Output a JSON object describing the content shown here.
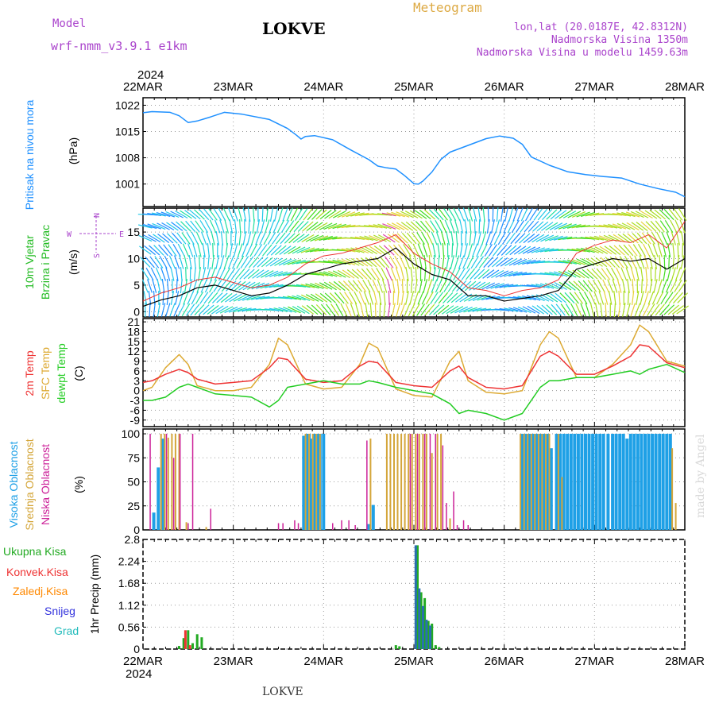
{
  "header": {
    "model_label": "Model",
    "model_name": "wrf-nmm_v3.9.1 e1km",
    "location": "LOKVE",
    "product": "Meteogram",
    "coords": "lon,lat (20.0187E, 42.8312N)",
    "elevation": "Nadmorska Visina 1350m",
    "model_elevation": "Nadmorska Visina u modelu 1459.63m",
    "year": "2024",
    "footer_location": "LOKVE",
    "watermark": "made by Angel"
  },
  "colors": {
    "pressure": "#1e90ff",
    "wind_label": "#22bb22",
    "temp_2m": "#ee3333",
    "temp_sfc": "#ddaa33",
    "dewpoint": "#22cc22",
    "cloud_high": "#1ea0e6",
    "cloud_mid": "#d4a63a",
    "cloud_low": "#cc2299",
    "precip_total": "#22aa22",
    "precip_conv": "#ee3333",
    "precip_frozen": "#ff8800",
    "snow": "#3333dd",
    "hail": "#22bbbb",
    "model_text": "#aa44cc",
    "meteogram_text": "#ddaa44"
  },
  "time_axis": {
    "day_labels": [
      "22MAR",
      "23MAR",
      "24MAR",
      "25MAR",
      "26MAR",
      "27MAR",
      "28MAR"
    ],
    "year": "2024"
  },
  "chart_data": [
    {
      "type": "line",
      "panel": "pressure",
      "ylabel_main": "Pritisak na nivou mora",
      "ylabel_unit": "(hPa)",
      "ylim": [
        995,
        1024
      ],
      "yticks": [
        "1001",
        "1008",
        "1015",
        "1022"
      ],
      "x_days": [
        0.0,
        0.1,
        0.3,
        0.4,
        0.5,
        0.6,
        0.75,
        0.9,
        1.1,
        1.4,
        1.6,
        1.7,
        1.75,
        1.8,
        1.9,
        2.1,
        2.3,
        2.5,
        2.6,
        2.7,
        2.8,
        2.9,
        3.0,
        3.05,
        3.1,
        3.2,
        3.3,
        3.4,
        3.6,
        3.8,
        3.95,
        4.1,
        4.2,
        4.3,
        4.5,
        4.7,
        4.9,
        5.1,
        5.3,
        5.5,
        5.7,
        5.9,
        6.0
      ],
      "series": [
        {
          "values": [
            1020.0,
            1020.3,
            1020.1,
            1019.2,
            1017.4,
            1017.8,
            1018.9,
            1020.1,
            1019.6,
            1018.2,
            1015.8,
            1014.0,
            1013.0,
            1013.7,
            1013.9,
            1012.8,
            1010.1,
            1007.5,
            1005.8,
            1005.3,
            1005.0,
            1003.2,
            1001.1,
            1001.0,
            1001.8,
            1004.2,
            1007.6,
            1009.5,
            1011.3,
            1013.1,
            1013.8,
            1013.2,
            1011.6,
            1008.2,
            1006.0,
            1004.3,
            1003.5,
            1003.0,
            1002.6,
            1001.0,
            999.8,
            998.8,
            997.6
          ]
        }
      ]
    },
    {
      "type": "line",
      "panel": "wind",
      "ylabel_main": "10m Vjetar",
      "ylabel_main2": "Brzina i Pravac",
      "ylabel_unit": "(m/s)",
      "compass": {
        "n": "N",
        "e": "E",
        "w": "W",
        "s": "S"
      },
      "ylim": [
        -1,
        19.5
      ],
      "yticks": [
        "0",
        "5",
        "10",
        "15"
      ],
      "x_days": [
        0.0,
        0.2,
        0.4,
        0.6,
        0.8,
        1.0,
        1.2,
        1.4,
        1.6,
        1.8,
        2.0,
        2.2,
        2.4,
        2.6,
        2.8,
        3.0,
        3.2,
        3.4,
        3.6,
        3.8,
        4.0,
        4.2,
        4.4,
        4.6,
        4.8,
        5.0,
        5.2,
        5.4,
        5.6,
        5.8,
        6.0
      ],
      "series": [
        {
          "name": "speed",
          "values": [
            1.0,
            2.2,
            3.0,
            4.5,
            5.0,
            4.0,
            3.0,
            3.5,
            5.0,
            7.0,
            8.0,
            9.0,
            9.5,
            10.0,
            12.0,
            9.0,
            7.0,
            6.0,
            3.0,
            3.0,
            2.0,
            2.5,
            3.0,
            4.0,
            8.0,
            9.0,
            10.0,
            9.5,
            10.0,
            8.0,
            10.0
          ]
        },
        {
          "name": "gust",
          "values": [
            2.0,
            3.5,
            4.5,
            6.0,
            6.5,
            5.5,
            4.5,
            5.0,
            6.5,
            9.0,
            10.5,
            11.0,
            12.0,
            13.0,
            14.5,
            11.0,
            9.0,
            7.5,
            4.5,
            4.0,
            3.0,
            4.0,
            4.5,
            6.0,
            11.0,
            12.5,
            13.5,
            13.0,
            14.5,
            12.0,
            17.0
          ]
        }
      ]
    },
    {
      "type": "line",
      "panel": "temperature",
      "ylabel_lines": [
        "2m Temp",
        "SFC Temp",
        "dewpt Temp"
      ],
      "ylabel_unit": "(C)",
      "ylim": [
        -11,
        22
      ],
      "yticks": [
        "-9",
        "-6",
        "-3",
        "0",
        "3",
        "6",
        "9",
        "12",
        "15",
        "18",
        "21"
      ],
      "x_days": [
        0.0,
        0.1,
        0.25,
        0.4,
        0.5,
        0.6,
        0.8,
        1.0,
        1.2,
        1.4,
        1.5,
        1.6,
        1.8,
        2.0,
        2.2,
        2.4,
        2.5,
        2.6,
        2.8,
        3.0,
        3.2,
        3.4,
        3.5,
        3.6,
        3.8,
        4.0,
        4.2,
        4.4,
        4.5,
        4.6,
        4.8,
        5.0,
        5.2,
        5.4,
        5.5,
        5.6,
        5.8,
        6.0
      ],
      "series": [
        {
          "name": "2m Temp",
          "values": [
            2.5,
            3.0,
            5.0,
            6.5,
            5.5,
            3.5,
            2.0,
            2.5,
            3.0,
            7.0,
            10.0,
            9.5,
            3.5,
            2.5,
            3.0,
            7.5,
            9.0,
            8.5,
            2.5,
            1.5,
            1.0,
            6.0,
            7.5,
            4.0,
            1.0,
            0.5,
            1.5,
            10.5,
            12.0,
            10.5,
            5.0,
            5.0,
            7.5,
            10.5,
            14.0,
            13.5,
            8.5,
            7.0
          ]
        },
        {
          "name": "SFC Temp",
          "values": [
            0.0,
            1.0,
            7.0,
            11.0,
            8.0,
            1.5,
            0.0,
            0.0,
            1.0,
            8.0,
            16.0,
            14.0,
            2.0,
            0.5,
            1.0,
            8.0,
            14.5,
            13.0,
            0.5,
            -1.5,
            -2.0,
            9.0,
            12.0,
            3.0,
            -0.5,
            -1.0,
            0.0,
            14.0,
            18.0,
            16.0,
            4.0,
            4.0,
            8.0,
            14.0,
            20.0,
            18.0,
            9.0,
            7.5
          ]
        },
        {
          "name": "dewpt Temp",
          "values": [
            -3.0,
            -3.0,
            -2.0,
            1.0,
            2.0,
            1.0,
            -1.0,
            -1.5,
            -2.0,
            -5.0,
            -3.0,
            1.0,
            2.0,
            3.0,
            2.0,
            2.0,
            3.0,
            2.5,
            1.0,
            0.0,
            -1.0,
            -4.0,
            -7.0,
            -6.0,
            -7.0,
            -9.0,
            -7.0,
            1.0,
            3.0,
            3.0,
            4.0,
            4.0,
            5.0,
            6.0,
            5.0,
            6.5,
            8.0,
            5.5
          ]
        }
      ]
    },
    {
      "type": "bar",
      "panel": "cloud",
      "ylabel_lines": [
        "Visoka Oblacnost",
        "Srednja Oblacnost",
        "Niska Oblacnost"
      ],
      "ylabel_unit": "(%)",
      "ylim": [
        0,
        105
      ],
      "yticks": [
        "0",
        "25",
        "50",
        "75",
        "100"
      ],
      "series": [
        {
          "name": "Visoka Oblacnost",
          "x": [
            0.12,
            0.17,
            0.22,
            1.78,
            1.81,
            1.84,
            1.87,
            1.9,
            1.93,
            1.96,
            2.0,
            2.5,
            2.55,
            4.2,
            4.24,
            4.28,
            4.32,
            4.36,
            4.4,
            4.44,
            4.48,
            4.52,
            4.58,
            4.62,
            4.66,
            4.7,
            4.74,
            4.78,
            4.82,
            4.86,
            4.9,
            4.94,
            4.98,
            5.02,
            5.06,
            5.1,
            5.15,
            5.2,
            5.24,
            5.28,
            5.32,
            5.36,
            5.4,
            5.44,
            5.48,
            5.52,
            5.56,
            5.6,
            5.64,
            5.68,
            5.72,
            5.76,
            5.8,
            5.84
          ],
          "values": [
            18,
            65,
            95,
            98,
            100,
            100,
            95,
            100,
            100,
            100,
            100,
            6,
            26,
            100,
            100,
            100,
            100,
            100,
            100,
            100,
            100,
            85,
            100,
            100,
            100,
            100,
            100,
            100,
            100,
            100,
            100,
            100,
            100,
            100,
            100,
            100,
            100,
            100,
            100,
            100,
            100,
            95,
            100,
            100,
            100,
            100,
            100,
            100,
            100,
            100,
            100,
            100,
            100,
            100
          ]
        },
        {
          "name": "Srednja Oblacnost",
          "x": [
            0.2,
            0.24,
            0.28,
            0.32,
            0.36,
            0.4,
            0.48,
            0.7,
            1.8,
            1.84,
            1.88,
            1.92,
            1.96,
            2.52,
            2.7,
            2.74,
            2.78,
            2.82,
            2.86,
            2.9,
            2.94,
            2.98,
            3.02,
            3.06,
            3.1,
            3.14,
            3.2,
            3.26,
            3.3,
            3.4,
            4.18,
            4.22,
            4.26,
            4.3,
            4.34,
            4.38,
            4.42,
            4.46,
            4.5,
            4.6,
            4.64,
            5.86,
            5.9
          ],
          "values": [
            100,
            100,
            96,
            100,
            100,
            100,
            8,
            3,
            100,
            100,
            100,
            100,
            100,
            95,
            100,
            100,
            100,
            100,
            100,
            100,
            100,
            100,
            100,
            100,
            100,
            100,
            80,
            100,
            100,
            12,
            100,
            100,
            100,
            100,
            100,
            100,
            100,
            100,
            100,
            100,
            55,
            85,
            28
          ]
        },
        {
          "name": "Niska Oblacnost",
          "x": [
            0.08,
            0.26,
            0.34,
            0.41,
            0.5,
            0.55,
            0.75,
            1.5,
            1.55,
            1.68,
            1.72,
            2.1,
            2.2,
            2.28,
            2.35,
            2.48,
            2.96,
            3.04,
            3.12,
            3.18,
            3.24,
            3.32,
            3.36,
            3.44,
            3.48,
            3.55,
            3.6
          ],
          "values": [
            100,
            100,
            75,
            100,
            7,
            100,
            22,
            7,
            7,
            10,
            7,
            7,
            10,
            10,
            5,
            93,
            100,
            100,
            100,
            100,
            100,
            88,
            28,
            40,
            5,
            10,
            5
          ]
        }
      ]
    },
    {
      "type": "bar",
      "panel": "precip",
      "ylabel_lines": [
        "Ukupna Kisa",
        "Konvek.Kisa",
        "Zaledj.Kisa",
        "Snijeg",
        "Grad"
      ],
      "ylabel_unit": "1hr Precip (mm)",
      "ylim": [
        0,
        2.8
      ],
      "yticks": [
        "0",
        "0.56",
        "1.12",
        "1.68",
        "2.24",
        "2.8"
      ],
      "series": [
        {
          "name": "Ukupna Kisa",
          "x": [
            0.4,
            0.45,
            0.5,
            0.55,
            0.6,
            0.65,
            2.8,
            2.84,
            3.04,
            3.08,
            3.12,
            3.16,
            3.2,
            3.24,
            3.28
          ],
          "values": [
            0.08,
            0.28,
            0.48,
            0.15,
            0.38,
            0.3,
            0.1,
            0.07,
            2.65,
            1.45,
            1.3,
            0.72,
            0.65,
            0.1,
            0.05
          ]
        },
        {
          "name": "Konvek.Kisa",
          "x": [
            0.47,
            0.52
          ],
          "values": [
            0.48,
            0.1
          ]
        },
        {
          "name": "Snijeg",
          "x": [
            3.02,
            3.06,
            3.1,
            3.14,
            3.18
          ],
          "values": [
            2.65,
            1.55,
            1.1,
            0.75,
            0.6
          ]
        }
      ]
    }
  ]
}
